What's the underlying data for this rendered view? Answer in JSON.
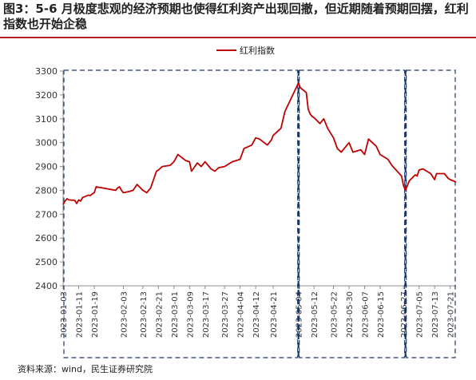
{
  "header": {
    "title": "图3：5-6 月极度悲观的经济预期也使得红利资产出现回撤，但近期随着预期回摆，红利指数也开始企稳",
    "source": "资料来源：wind，民生证券研究院"
  },
  "chart_data": {
    "type": "line",
    "title": "",
    "xlabel": "",
    "ylabel": "",
    "ylim": [
      2400,
      3300
    ],
    "yticks": [
      2400,
      2500,
      2600,
      2700,
      2800,
      2900,
      3000,
      3100,
      3200,
      3300
    ],
    "xlim": [
      "2023-01-03",
      "2023-07-24"
    ],
    "xticks": [
      "2023-01-03",
      "2023-01-11",
      "2023-01-19",
      "2023-02-03",
      "2023-02-13",
      "2023-02-21",
      "2023-03-01",
      "2023-03-09",
      "2023-03-17",
      "2023-03-27",
      "2023-04-04",
      "2023-04-12",
      "2023-04-21",
      "2023-05-04",
      "2023-05-12",
      "2023-05-22",
      "2023-05-30",
      "2023-06-07",
      "2023-06-15",
      "2023-06-27",
      "2023-07-05",
      "2023-07-13",
      "2023-07-21"
    ],
    "grid": false,
    "legend": "top",
    "line_color": "#c00000",
    "box_color": "#1f3864",
    "series": [
      {
        "name": "红利指数",
        "x": [
          "2023-01-03",
          "2023-01-04",
          "2023-01-05",
          "2023-01-06",
          "2023-01-09",
          "2023-01-10",
          "2023-01-11",
          "2023-01-12",
          "2023-01-13",
          "2023-01-16",
          "2023-01-17",
          "2023-01-18",
          "2023-01-19",
          "2023-01-20",
          "2023-01-30",
          "2023-01-31",
          "2023-02-01",
          "2023-02-02",
          "2023-02-03",
          "2023-02-06",
          "2023-02-08",
          "2023-02-10",
          "2023-02-13",
          "2023-02-15",
          "2023-02-17",
          "2023-02-20",
          "2023-02-21",
          "2023-02-23",
          "2023-02-27",
          "2023-03-01",
          "2023-03-03",
          "2023-03-07",
          "2023-03-09",
          "2023-03-10",
          "2023-03-13",
          "2023-03-15",
          "2023-03-17",
          "2023-03-20",
          "2023-03-22",
          "2023-03-24",
          "2023-03-27",
          "2023-03-29",
          "2023-03-31",
          "2023-04-04",
          "2023-04-06",
          "2023-04-10",
          "2023-04-12",
          "2023-04-14",
          "2023-04-18",
          "2023-04-20",
          "2023-04-21",
          "2023-04-25",
          "2023-04-27",
          "2023-05-04",
          "2023-05-05",
          "2023-05-08",
          "2023-05-09",
          "2023-05-10",
          "2023-05-11",
          "2023-05-12",
          "2023-05-15",
          "2023-05-17",
          "2023-05-19",
          "2023-05-22",
          "2023-05-24",
          "2023-05-26",
          "2023-05-30",
          "2023-06-01",
          "2023-06-05",
          "2023-06-07",
          "2023-06-09",
          "2023-06-13",
          "2023-06-15",
          "2023-06-19",
          "2023-06-21",
          "2023-06-26",
          "2023-06-27",
          "2023-06-28",
          "2023-06-30",
          "2023-07-03",
          "2023-07-04",
          "2023-07-05",
          "2023-07-07",
          "2023-07-11",
          "2023-07-13",
          "2023-07-14",
          "2023-07-18",
          "2023-07-20",
          "2023-07-21",
          "2023-07-24"
        ],
        "values": [
          2740,
          2755,
          2765,
          2760,
          2758,
          2745,
          2760,
          2755,
          2770,
          2780,
          2778,
          2785,
          2790,
          2815,
          2800,
          2810,
          2815,
          2800,
          2790,
          2795,
          2800,
          2825,
          2800,
          2790,
          2810,
          2880,
          2885,
          2900,
          2905,
          2920,
          2950,
          2925,
          2920,
          2880,
          2915,
          2900,
          2920,
          2890,
          2880,
          2895,
          2900,
          2910,
          2920,
          2930,
          2975,
          2990,
          3020,
          3015,
          2990,
          3010,
          3030,
          3060,
          3130,
          3250,
          3230,
          3210,
          3140,
          3120,
          3110,
          3105,
          3080,
          3100,
          3060,
          3020,
          2975,
          2960,
          3000,
          2960,
          2970,
          2950,
          3015,
          2985,
          2950,
          2930,
          2905,
          2860,
          2820,
          2800,
          2840,
          2865,
          2860,
          2885,
          2890,
          2870,
          2845,
          2870,
          2870,
          2850,
          2845,
          2835
        ]
      }
    ]
  }
}
